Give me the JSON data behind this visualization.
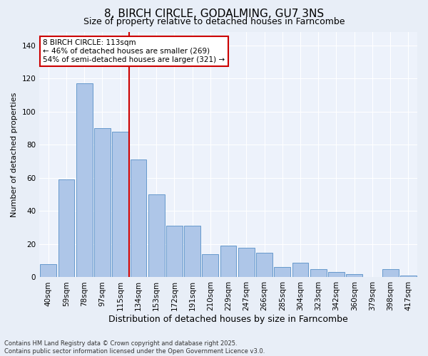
{
  "title": "8, BIRCH CIRCLE, GODALMING, GU7 3NS",
  "subtitle": "Size of property relative to detached houses in Farncombe",
  "xlabel": "Distribution of detached houses by size in Farncombe",
  "ylabel": "Number of detached properties",
  "categories": [
    "40sqm",
    "59sqm",
    "78sqm",
    "97sqm",
    "115sqm",
    "134sqm",
    "153sqm",
    "172sqm",
    "191sqm",
    "210sqm",
    "229sqm",
    "247sqm",
    "266sqm",
    "285sqm",
    "304sqm",
    "323sqm",
    "342sqm",
    "360sqm",
    "379sqm",
    "398sqm",
    "417sqm"
  ],
  "values": [
    8,
    59,
    117,
    90,
    88,
    71,
    50,
    31,
    31,
    14,
    19,
    18,
    15,
    6,
    9,
    5,
    3,
    2,
    0,
    5,
    1
  ],
  "bar_color": "#aec6e8",
  "bar_edge_color": "#6699cc",
  "vline_color": "#cc0000",
  "vline_x": 4.5,
  "annotation_box_color": "#ffffff",
  "annotation_box_edge": "#cc0000",
  "property_label": "8 BIRCH CIRCLE: 113sqm",
  "pct_smaller": 46,
  "pct_larger_semi": 54,
  "n_smaller": 269,
  "n_larger_semi": 321,
  "footnote1": "Contains HM Land Registry data © Crown copyright and database right 2025.",
  "footnote2": "Contains public sector information licensed under the Open Government Licence v3.0.",
  "ylim": [
    0,
    148
  ],
  "yticks": [
    0,
    20,
    40,
    60,
    80,
    100,
    120,
    140
  ],
  "title_fontsize": 11,
  "subtitle_fontsize": 9,
  "xlabel_fontsize": 9,
  "ylabel_fontsize": 8,
  "tick_fontsize": 7.5,
  "annot_fontsize": 7.5,
  "footnote_fontsize": 6,
  "bg_color": "#e8eef7",
  "plot_bg_color": "#edf2fb"
}
